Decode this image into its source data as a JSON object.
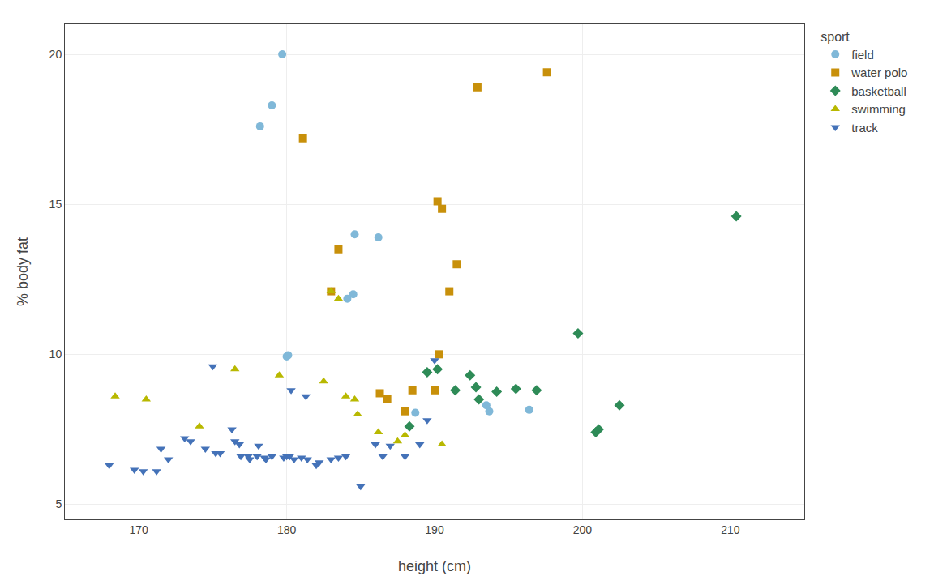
{
  "chart_data": {
    "type": "scatter",
    "xlabel": "height (cm)",
    "ylabel": "% body fat",
    "xlim": [
      165,
      215
    ],
    "ylim": [
      4.5,
      21
    ],
    "xticks": [
      170,
      180,
      190,
      200,
      210
    ],
    "yticks": [
      5,
      10,
      15,
      20
    ],
    "grid": true,
    "legend": "right",
    "legend_title": "sport",
    "series": [
      {
        "name": "field",
        "color": "#80B8D8",
        "marker": "circle",
        "x": [
          179.7,
          179.0,
          178.2,
          184.6,
          186.2,
          184.5,
          184.1,
          180.1,
          180.0,
          188.7,
          193.7,
          196.4,
          193.5
        ],
        "values": [
          20.0,
          18.3,
          17.6,
          14.0,
          13.9,
          12.0,
          11.85,
          9.97,
          9.93,
          8.05,
          8.1,
          8.15,
          8.3
        ]
      },
      {
        "name": "water polo",
        "color": "#C8900A",
        "marker": "square",
        "x": [
          181.1,
          183.5,
          183.0,
          190.2,
          190.5,
          191.5,
          191.0,
          190.3,
          186.3,
          186.8,
          188.5,
          190.0,
          188.0,
          192.9,
          197.6
        ],
        "values": [
          17.2,
          13.5,
          12.1,
          15.1,
          14.85,
          13.0,
          12.1,
          10.0,
          8.7,
          8.5,
          8.8,
          8.8,
          8.1,
          18.9,
          19.4
        ]
      },
      {
        "name": "basketball",
        "color": "#2E8B57",
        "marker": "diamond",
        "x": [
          188.3,
          190.2,
          189.5,
          192.4,
          191.4,
          192.8,
          194.2,
          196.9,
          195.5,
          193.0,
          199.7,
          200.9,
          202.5,
          201.1,
          210.4
        ],
        "values": [
          7.6,
          9.5,
          9.4,
          9.3,
          8.8,
          8.9,
          8.75,
          8.8,
          8.85,
          8.5,
          10.7,
          7.4,
          8.3,
          7.5,
          14.6
        ]
      },
      {
        "name": "swimming",
        "color": "#B8B800",
        "marker": "triangle-up",
        "x": [
          168.4,
          170.5,
          174.1,
          176.5,
          179.5,
          182.5,
          184.0,
          184.6,
          184.8,
          186.2,
          187.5,
          188.0,
          190.5,
          183.0,
          183.5
        ],
        "values": [
          8.6,
          8.5,
          7.6,
          9.5,
          9.3,
          9.1,
          8.6,
          8.5,
          8.0,
          7.4,
          7.1,
          7.3,
          7.0,
          12.1,
          11.85
        ]
      },
      {
        "name": "track",
        "color": "#4472B8",
        "marker": "triangle-down",
        "x": [
          168.0,
          169.7,
          170.3,
          171.2,
          171.5,
          172.0,
          173.1,
          173.5,
          174.5,
          175.2,
          175.5,
          176.3,
          176.5,
          176.8,
          176.9,
          177.4,
          177.5,
          178.0,
          178.1,
          178.5,
          178.6,
          179.0,
          179.8,
          180.0,
          180.2,
          180.5,
          181.0,
          181.4,
          182.0,
          182.2,
          183.0,
          183.5,
          184.0,
          185.0,
          186.0,
          186.5,
          187.0,
          188.0,
          189.0,
          189.5,
          190.0,
          175.0,
          180.3,
          181.3
        ],
        "values": [
          6.3,
          6.15,
          6.1,
          6.1,
          6.85,
          6.5,
          7.2,
          7.1,
          6.85,
          6.7,
          6.7,
          7.5,
          7.1,
          7.0,
          6.6,
          6.6,
          6.5,
          6.6,
          6.95,
          6.55,
          6.5,
          6.6,
          6.55,
          6.6,
          6.6,
          6.5,
          6.55,
          6.5,
          6.3,
          6.4,
          6.5,
          6.55,
          6.6,
          5.6,
          7.0,
          6.6,
          6.95,
          6.6,
          7.0,
          7.8,
          9.8,
          9.6,
          8.8,
          8.6
        ]
      }
    ]
  }
}
